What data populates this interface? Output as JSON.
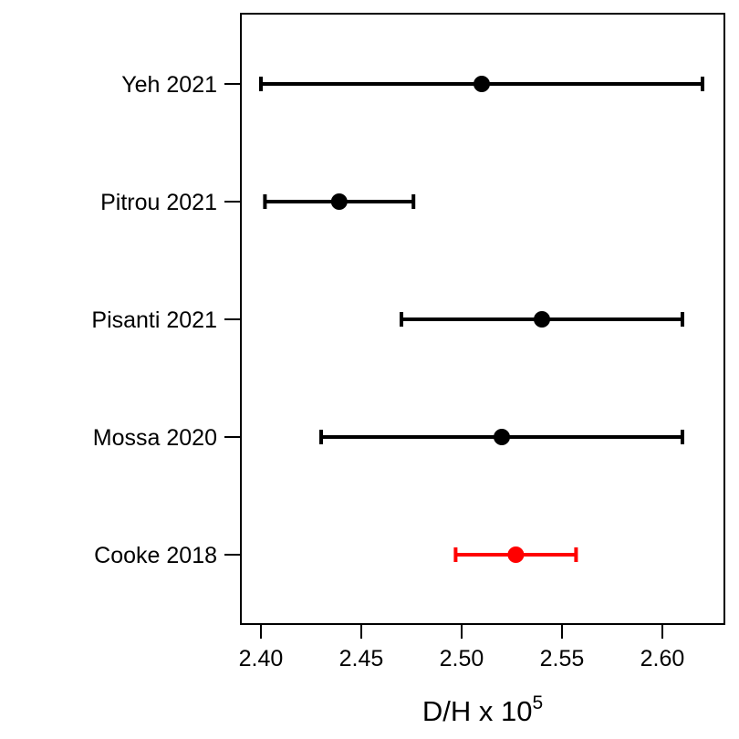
{
  "chart_data": {
    "type": "scatter",
    "subtype": "forest-plot",
    "title": "",
    "xlabel": {
      "base": "D/H x 10",
      "superscript": "5"
    },
    "ylabel": "",
    "xlim": [
      2.39,
      2.63
    ],
    "xticks": [
      2.4,
      2.45,
      2.5,
      2.55,
      2.6,
      2.65
    ],
    "xtick_labels": [
      "2.40",
      "2.45",
      "2.50",
      "2.55",
      "2.60",
      ""
    ],
    "grid": false,
    "legend": "none",
    "categories": [
      "Yeh 2021",
      "Pitrou 2021",
      "Pisanti 2021",
      "Mossa 2020",
      "Cooke 2018"
    ],
    "series": [
      {
        "points": [
          {
            "label": "Yeh 2021",
            "value": 2.51,
            "lower": 2.4,
            "upper": 2.62,
            "color": "#000000"
          },
          {
            "label": "Pitrou 2021",
            "value": 2.439,
            "lower": 2.402,
            "upper": 2.476,
            "color": "#000000"
          },
          {
            "label": "Pisanti 2021",
            "value": 2.54,
            "lower": 2.47,
            "upper": 2.61,
            "color": "#000000"
          },
          {
            "label": "Mossa 2020",
            "value": 2.52,
            "lower": 2.43,
            "upper": 2.61,
            "color": "#000000"
          },
          {
            "label": "Cooke 2018",
            "value": 2.527,
            "lower": 2.497,
            "upper": 2.557,
            "color": "#ff0000"
          }
        ]
      }
    ]
  }
}
